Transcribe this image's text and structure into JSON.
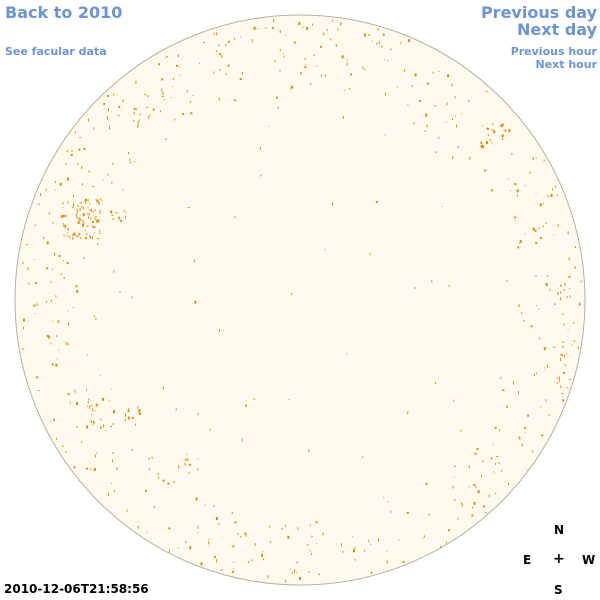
{
  "navigation": {
    "back_label": "Back to 2010",
    "facular_label": "See facular data",
    "previous_day_label": "Previous day",
    "next_day_label": "Next day",
    "previous_hour_label": "Previous hour",
    "next_hour_label": "Next hour"
  },
  "compass": {
    "north": "N",
    "south": "S",
    "east": "E",
    "west": "W",
    "center": "+"
  },
  "timestamp": "2010-12-06T21:58:56",
  "colors": {
    "link": "#6b93d6",
    "disk_fill": "#fff9ee",
    "disk_border": "#b8b0a0",
    "facula": "#e28a0c"
  },
  "icons": {
    "compass": "compass-rose-icon"
  }
}
